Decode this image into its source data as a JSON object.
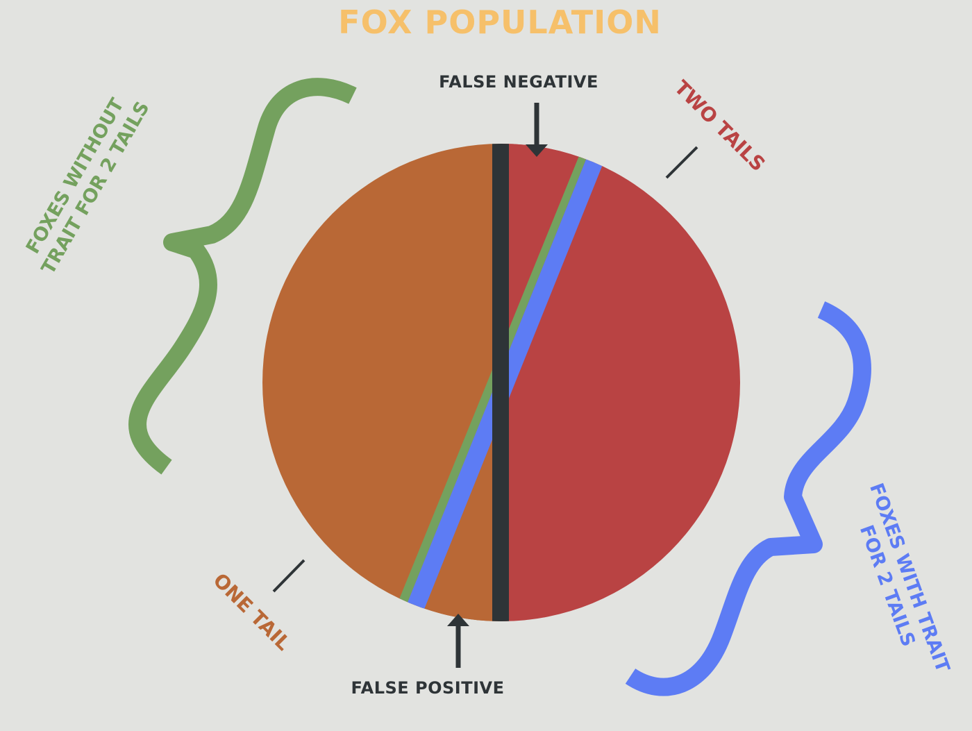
{
  "title": "FOX POPULATION",
  "labels": {
    "false_negative": "FALSE NEGATIVE",
    "false_positive": "FALSE POSITIVE",
    "two_tails": "TWO TAILS",
    "one_tail": "ONE TAIL",
    "without_trait_line1": "FOXES WITHOUT",
    "without_trait_line2": "TRAIT FOR 2 TAILS",
    "with_trait_line1": "FOXES WITH TRAIT",
    "with_trait_line2": "FOR 2 TAILS"
  },
  "colors": {
    "background": "#e2e3e0",
    "title": "#f6c06a",
    "one_tail": "#b96836",
    "two_tails": "#b94343",
    "divider": "#2e3437",
    "without_trait": "#74a15e",
    "with_trait": "#5d7cf4",
    "annotation": "#2e3437"
  }
}
